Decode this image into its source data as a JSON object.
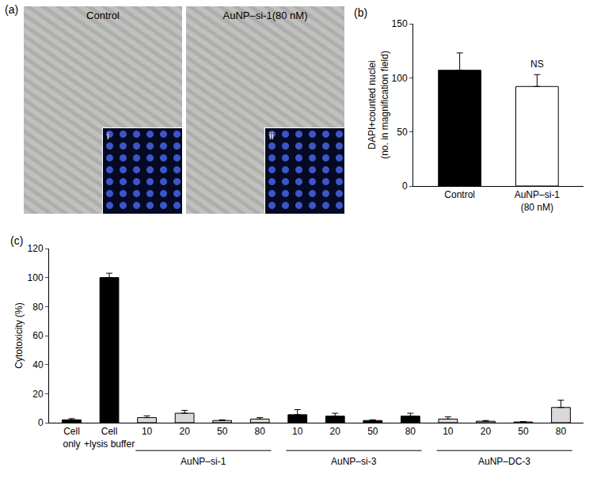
{
  "chart_data": [
    {
      "type": "bar",
      "categories": [
        "Control",
        "AuNP–si-1\n(80 nM)"
      ],
      "values": [
        107,
        92
      ],
      "error": [
        16,
        11
      ],
      "colors": [
        "#000000",
        "#ffffff"
      ],
      "y_label": "DAPI+counted nuclei\n(no. in magnification field)",
      "ylim": [
        0,
        150
      ],
      "yticks": [
        0,
        50,
        100,
        150
      ],
      "grid": false,
      "annotations": [
        {
          "text": "(b)"
        },
        {
          "text": "NS",
          "at": "AuNP–si-1\n(80 nM)"
        }
      ]
    },
    {
      "type": "bar",
      "categories": [
        "Cell\nonly",
        "Cell\n+lysis buffer",
        "10",
        "20",
        "50",
        "80",
        "10",
        "20",
        "50",
        "80",
        "10",
        "20",
        "50",
        "80"
      ],
      "values": [
        2,
        100,
        3.5,
        6.5,
        1.5,
        2.5,
        5.5,
        4.5,
        1.5,
        4.5,
        2.5,
        1,
        0.5,
        10.5
      ],
      "error": [
        0.8,
        3,
        1.2,
        2,
        0.5,
        1,
        3.5,
        2,
        0.5,
        2,
        1.5,
        0.5,
        0.3,
        5
      ],
      "colors": [
        "#000000",
        "#000000",
        "#d9d9d9",
        "#d9d9d9",
        "#d9d9d9",
        "#d9d9d9",
        "#000000",
        "#000000",
        "#000000",
        "#000000",
        "#d9d9d9",
        "#d9d9d9",
        "#d9d9d9",
        "#d9d9d9"
      ],
      "groups": [
        {
          "label": "AuNP–si-1",
          "from": 2,
          "to": 5
        },
        {
          "label": "AuNP–si-3",
          "from": 6,
          "to": 9
        },
        {
          "label": "AuNP–DC-3",
          "from": 10,
          "to": 13
        }
      ],
      "y_label": "Cytotoxicity (%)",
      "ylim": [
        0,
        120
      ],
      "yticks": [
        0,
        20,
        40,
        60,
        80,
        100,
        120
      ],
      "grid": false,
      "annotations": [
        {
          "text": "(c)"
        }
      ]
    }
  ],
  "micrographs": {
    "label": "(a)",
    "images": [
      {
        "title": "Control",
        "inset": "i"
      },
      {
        "title": "AuNP–si-1(80 nM)",
        "inset": "ii"
      }
    ]
  }
}
